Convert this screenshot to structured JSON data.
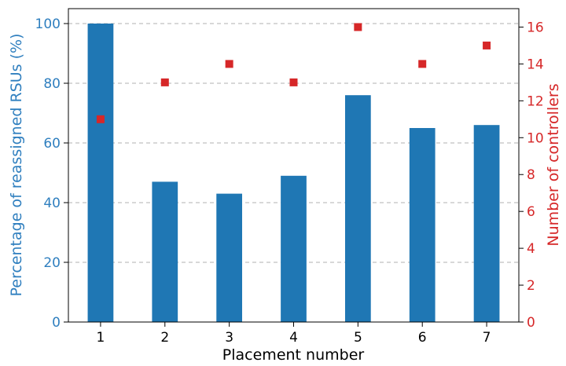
{
  "chart_data": {
    "type": "bar",
    "xlabel": "Placement number",
    "categories": [
      "1",
      "2",
      "3",
      "4",
      "5",
      "6",
      "7"
    ],
    "left_axis": {
      "label": "Percentage of reassigned RSUs (%)",
      "ylim": [
        0,
        105
      ],
      "ticks": [
        "0",
        "20",
        "40",
        "60",
        "80",
        "100"
      ],
      "color": "#2f7fbf"
    },
    "right_axis": {
      "label": "Number of controllers",
      "ylim": [
        0,
        17
      ],
      "ticks": [
        "0",
        "2",
        "4",
        "6",
        "8",
        "10",
        "12",
        "14",
        "16"
      ],
      "color": "#d62728"
    },
    "series": [
      {
        "type": "bar",
        "axis": "left",
        "color": "#1f77b4",
        "values": [
          100,
          47,
          43,
          49,
          76,
          65,
          66
        ]
      },
      {
        "type": "scatter",
        "axis": "right",
        "marker": "square",
        "color": "#d62728",
        "values": [
          11,
          13,
          14,
          13,
          16,
          14,
          15
        ]
      }
    ],
    "grid": "horizontal dashed, left axis",
    "legend": "none"
  }
}
